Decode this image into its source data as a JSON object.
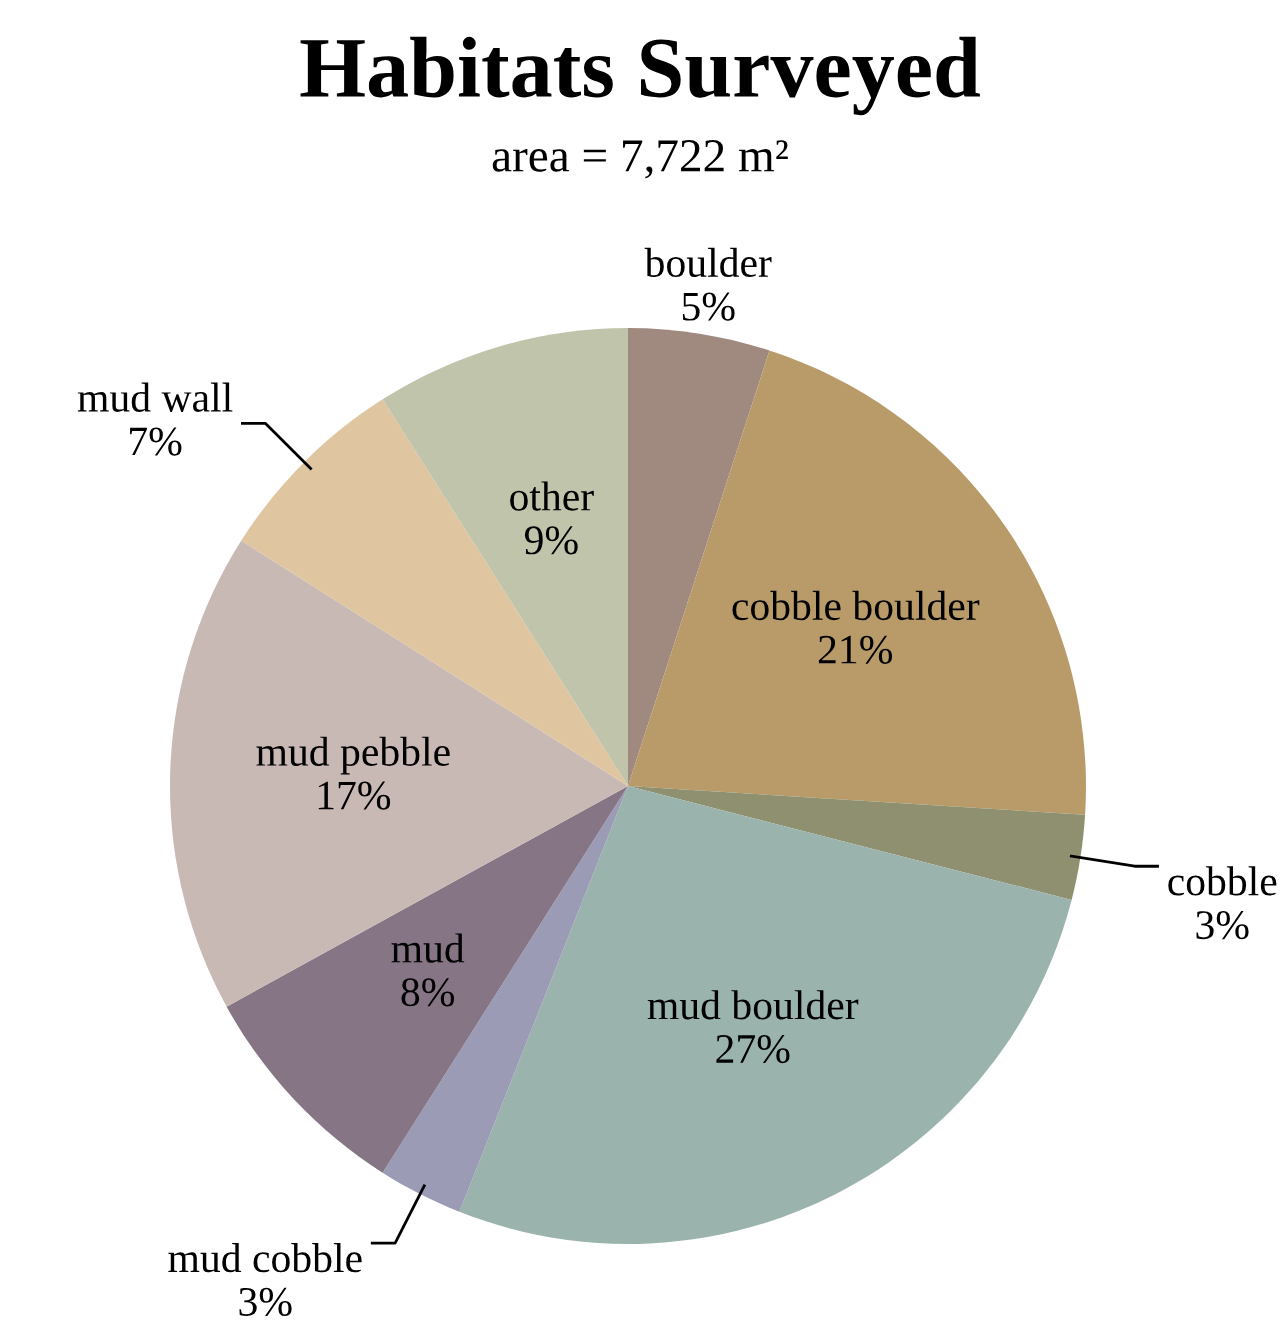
{
  "chart_data": {
    "type": "pie",
    "title": "Habitats Surveyed",
    "subtitle": "area = 7,722 m²",
    "categories": [
      "boulder",
      "cobble boulder",
      "cobble",
      "mud boulder",
      "mud cobble",
      "mud",
      "mud pebble",
      "mud wall",
      "other"
    ],
    "values": [
      5,
      21,
      3,
      27,
      3,
      8,
      17,
      7,
      9
    ],
    "value_labels": [
      "5%",
      "21%",
      "3%",
      "27%",
      "3%",
      "8%",
      "17%",
      "7%",
      "9%"
    ],
    "colors": [
      "#a08a80",
      "#b89b68",
      "#8f9070",
      "#9ab3ac",
      "#9b9bb5",
      "#857585",
      "#c8b9b4",
      "#dfc6a0",
      "#c0c4ab"
    ]
  }
}
